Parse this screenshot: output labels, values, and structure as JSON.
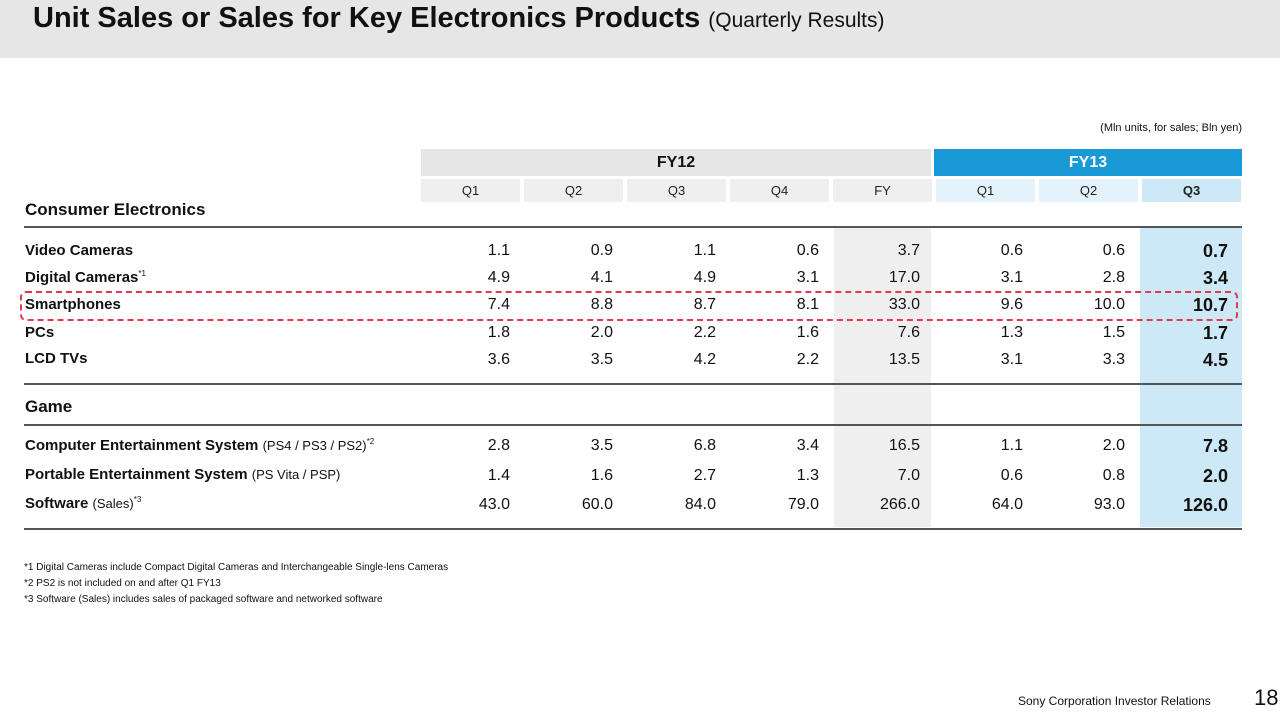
{
  "title": "Unit Sales or Sales for Key Electronics Products",
  "subtitle": "(Quarterly Results)",
  "unit_note": "(Mln units, for sales; Bln yen)",
  "fiscal_years": {
    "fy12": "FY12",
    "fy13": "FY13"
  },
  "columns": [
    "Q1",
    "Q2",
    "Q3",
    "Q4",
    "FY",
    "Q1",
    "Q2",
    "Q3"
  ],
  "sections": [
    {
      "label": "Consumer Electronics",
      "rows": [
        {
          "label": "Video Cameras",
          "paren": "",
          "note": "",
          "values": [
            "1.1",
            "0.9",
            "1.1",
            "0.6",
            "3.7",
            "0.6",
            "0.6",
            "0.7"
          ]
        },
        {
          "label": "Digital Cameras",
          "paren": "",
          "note": "*1",
          "values": [
            "4.9",
            "4.1",
            "4.9",
            "3.1",
            "17.0",
            "3.1",
            "2.8",
            "3.4"
          ]
        },
        {
          "label": "Smartphones",
          "paren": "",
          "note": "",
          "values": [
            "7.4",
            "8.8",
            "8.7",
            "8.1",
            "33.0",
            "9.6",
            "10.0",
            "10.7"
          ]
        },
        {
          "label": "PCs",
          "paren": "",
          "note": "",
          "values": [
            "1.8",
            "2.0",
            "2.2",
            "1.6",
            "7.6",
            "1.3",
            "1.5",
            "1.7"
          ]
        },
        {
          "label": "LCD TVs",
          "paren": "",
          "note": "",
          "values": [
            "3.6",
            "3.5",
            "4.2",
            "2.2",
            "13.5",
            "3.1",
            "3.3",
            "4.5"
          ]
        }
      ]
    },
    {
      "label": "Game",
      "rows": [
        {
          "label": "Computer Entertainment System",
          "paren": "(PS4 / PS3 / PS2)",
          "note": "*2",
          "values": [
            "2.8",
            "3.5",
            "6.8",
            "3.4",
            "16.5",
            "1.1",
            "2.0",
            "7.8"
          ]
        },
        {
          "label": "Portable Entertainment System",
          "paren": "(PS Vita / PSP)",
          "note": "",
          "values": [
            "1.4",
            "1.6",
            "2.7",
            "1.3",
            "7.0",
            "0.6",
            "0.8",
            "2.0"
          ]
        },
        {
          "label": "Software",
          "paren": "(Sales)",
          "note": "*3",
          "values": [
            "43.0",
            "60.0",
            "84.0",
            "79.0",
            "266.0",
            "64.0",
            "93.0",
            "126.0"
          ]
        }
      ]
    }
  ],
  "footnotes": [
    "*1 Digital Cameras include Compact Digital Cameras and Interchangeable Single-lens Cameras",
    "*2 PS2 is not included on and after Q1 FY13",
    "*3 Software (Sales) includes sales of packaged software and networked software"
  ],
  "footer": "Sony Corporation  Investor Relations",
  "page_number": "18",
  "colors": {
    "fy13_accent": "#199ad7",
    "highlight": "#e23a4a"
  }
}
